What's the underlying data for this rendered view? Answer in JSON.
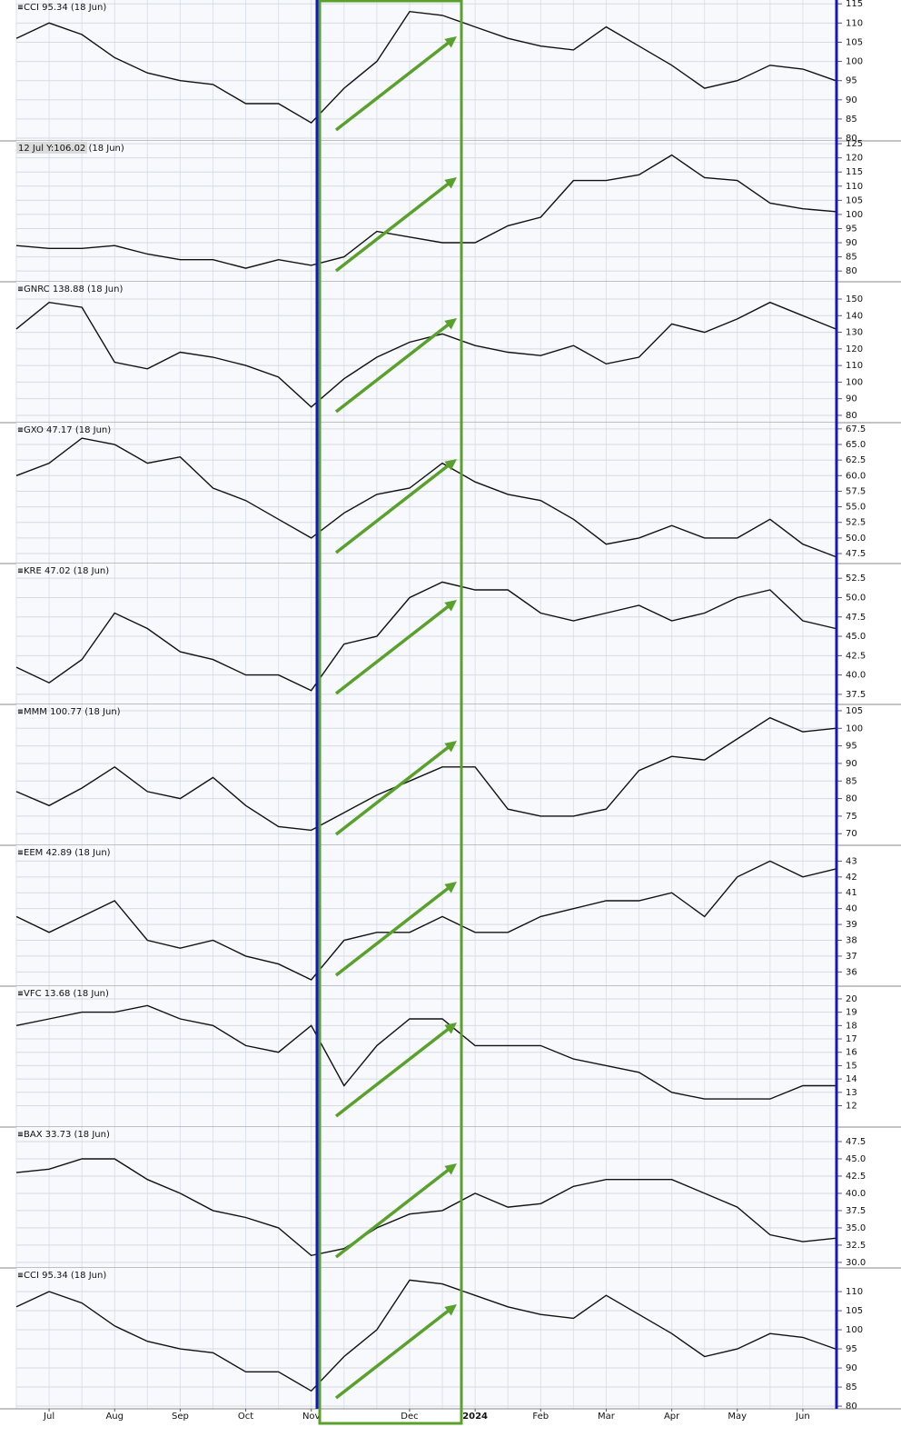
{
  "chart_data": [
    {
      "type": "line",
      "title": "CCI 95.34 (18 Jun)",
      "ylim": [
        79.3,
        116
      ],
      "yticks": [
        80,
        85,
        90,
        95,
        100,
        105,
        110,
        115
      ],
      "grid": true,
      "color": "#111111",
      "values": [
        106,
        110,
        107,
        101,
        97,
        95,
        94,
        89,
        89,
        84,
        93,
        100,
        113,
        112,
        109,
        106,
        104,
        103,
        109,
        104,
        99,
        93,
        95,
        99,
        98,
        95
      ]
    },
    {
      "type": "line",
      "title": "12 Jul Y:106.02 (18 Jun)",
      "ylim": [
        76.2,
        126
      ],
      "yticks": [
        80,
        85,
        90,
        95,
        100,
        105,
        110,
        115,
        120,
        125
      ],
      "grid": true,
      "color": "#111111",
      "values": [
        89,
        88,
        88,
        89,
        86,
        84,
        84,
        81,
        84,
        82,
        85,
        94,
        92,
        90,
        90,
        96,
        99,
        112,
        112,
        114,
        121,
        113,
        112,
        104,
        102,
        101
      ]
    },
    {
      "type": "line",
      "title": "GNRC 138.88 (18 Jun)",
      "ylim": [
        75.6,
        160.4
      ],
      "yticks": [
        80,
        90,
        100,
        110,
        120,
        130,
        140,
        150
      ],
      "grid": true,
      "color": "#111111",
      "values": [
        132,
        148,
        145,
        112,
        108,
        118,
        115,
        110,
        103,
        85,
        102,
        115,
        124,
        129,
        122,
        118,
        116,
        122,
        111,
        115,
        135,
        130,
        138,
        148,
        140,
        132
      ]
    },
    {
      "type": "line",
      "title": "GXO 47.17 (18 Jun)",
      "ylim": [
        45.9,
        68.5
      ],
      "yticks": [
        47.5,
        {
          "value": 50,
          "label": "50.0"
        },
        52.5,
        {
          "value": 55,
          "label": "55.0"
        },
        57.5,
        {
          "value": 60,
          "label": "60.0"
        },
        62.5,
        {
          "value": 65,
          "label": "65.0"
        },
        67.5
      ],
      "grid": true,
      "color": "#111111",
      "values": [
        60,
        62,
        66,
        65,
        62,
        63,
        58,
        56,
        53,
        50,
        54,
        57,
        58,
        62,
        59,
        57,
        56,
        53,
        49,
        50,
        52,
        50,
        50,
        53,
        49,
        47
      ]
    },
    {
      "type": "line",
      "title": "KRE 47.02 (18 Jun)",
      "ylim": [
        36.2,
        54.4
      ],
      "yticks": [
        37.5,
        {
          "value": 40,
          "label": "40.0"
        },
        42.5,
        {
          "value": 45,
          "label": "45.0"
        },
        47.5,
        {
          "value": 50,
          "label": "50.0"
        },
        52.5
      ],
      "grid": true,
      "color": "#111111",
      "values": [
        41,
        39,
        42,
        48,
        46,
        43,
        42,
        40,
        40,
        38,
        44,
        45,
        50,
        52,
        51,
        51,
        48,
        47,
        48,
        49,
        47,
        48,
        50,
        51,
        47,
        46
      ]
    },
    {
      "type": "line",
      "title": "MMM 100.77 (18 Jun)",
      "ylim": [
        66.7,
        106.8
      ],
      "yticks": [
        70,
        75,
        80,
        85,
        90,
        95,
        100,
        105
      ],
      "grid": true,
      "color": "#111111",
      "values": [
        82,
        78,
        83,
        89,
        82,
        80,
        86,
        78,
        72,
        71,
        76,
        81,
        85,
        89,
        89,
        77,
        75,
        75,
        77,
        88,
        92,
        91,
        97,
        103,
        99,
        100
      ]
    },
    {
      "type": "line",
      "title": "EEM 42.89 (18 Jun)",
      "ylim": [
        35.1,
        44
      ],
      "yticks": [
        36,
        37,
        38,
        39,
        40,
        41,
        42,
        43
      ],
      "grid": true,
      "color": "#111111",
      "values": [
        39.5,
        38.5,
        39.5,
        40.5,
        38,
        37.5,
        38,
        37,
        36.5,
        35.5,
        38,
        38.5,
        38.5,
        39.5,
        38.5,
        38.5,
        39.5,
        40,
        40.5,
        40.5,
        41,
        39.5,
        42,
        43,
        42,
        42.5
      ]
    },
    {
      "type": "line",
      "title": "VFC 13.68 (18 Jun)",
      "ylim": [
        10.4,
        20.95
      ],
      "yticks": [
        12,
        13,
        14,
        15,
        16,
        17,
        18,
        19,
        20
      ],
      "grid": true,
      "color": "#111111",
      "values": [
        18,
        18.5,
        19,
        19,
        19.5,
        18.5,
        18,
        16.5,
        16,
        18,
        13.5,
        16.5,
        18.5,
        18.5,
        16.5,
        16.5,
        16.5,
        15.5,
        15,
        14.5,
        13,
        12.5,
        12.5,
        12.5,
        13.5,
        13.5
      ]
    },
    {
      "type": "line",
      "title": "BAX 33.73 (18 Jun)",
      "ylim": [
        29.2,
        49.6
      ],
      "yticks": [
        {
          "value": 30,
          "label": "30.0"
        },
        32.5,
        {
          "value": 35,
          "label": "35.0"
        },
        37.5,
        {
          "value": 40,
          "label": "40.0"
        },
        42.5,
        {
          "value": 45,
          "label": "45.0"
        },
        47.5
      ],
      "grid": true,
      "color": "#111111",
      "values": [
        43,
        43.5,
        45,
        45,
        42,
        40,
        37.5,
        36.5,
        35,
        31,
        32,
        35,
        37,
        37.5,
        40,
        38,
        38.5,
        41,
        42,
        42,
        42,
        40,
        38,
        34,
        33,
        33.5
      ]
    },
    {
      "type": "line",
      "title": "CCI 95.34 (18 Jun)",
      "ylim": [
        79.3,
        116.2
      ],
      "yticks": [
        80,
        85,
        90,
        95,
        100,
        105,
        110
      ],
      "grid": true,
      "color": "#111111",
      "values": [
        106,
        110,
        107,
        101,
        97,
        95,
        94,
        89,
        89,
        84,
        93,
        100,
        113,
        112,
        109,
        106,
        104,
        103,
        109,
        104,
        99,
        93,
        95,
        99,
        98,
        95
      ],
      "categories": [
        null,
        "Jul",
        null,
        "Aug",
        null,
        "Sep",
        null,
        "Oct",
        null,
        "Nov",
        null,
        null,
        "Dec",
        null,
        "2024",
        null,
        "Feb",
        null,
        "Mar",
        null,
        "Apr",
        null,
        "May",
        null,
        "Jun",
        null
      ]
    }
  ]
}
